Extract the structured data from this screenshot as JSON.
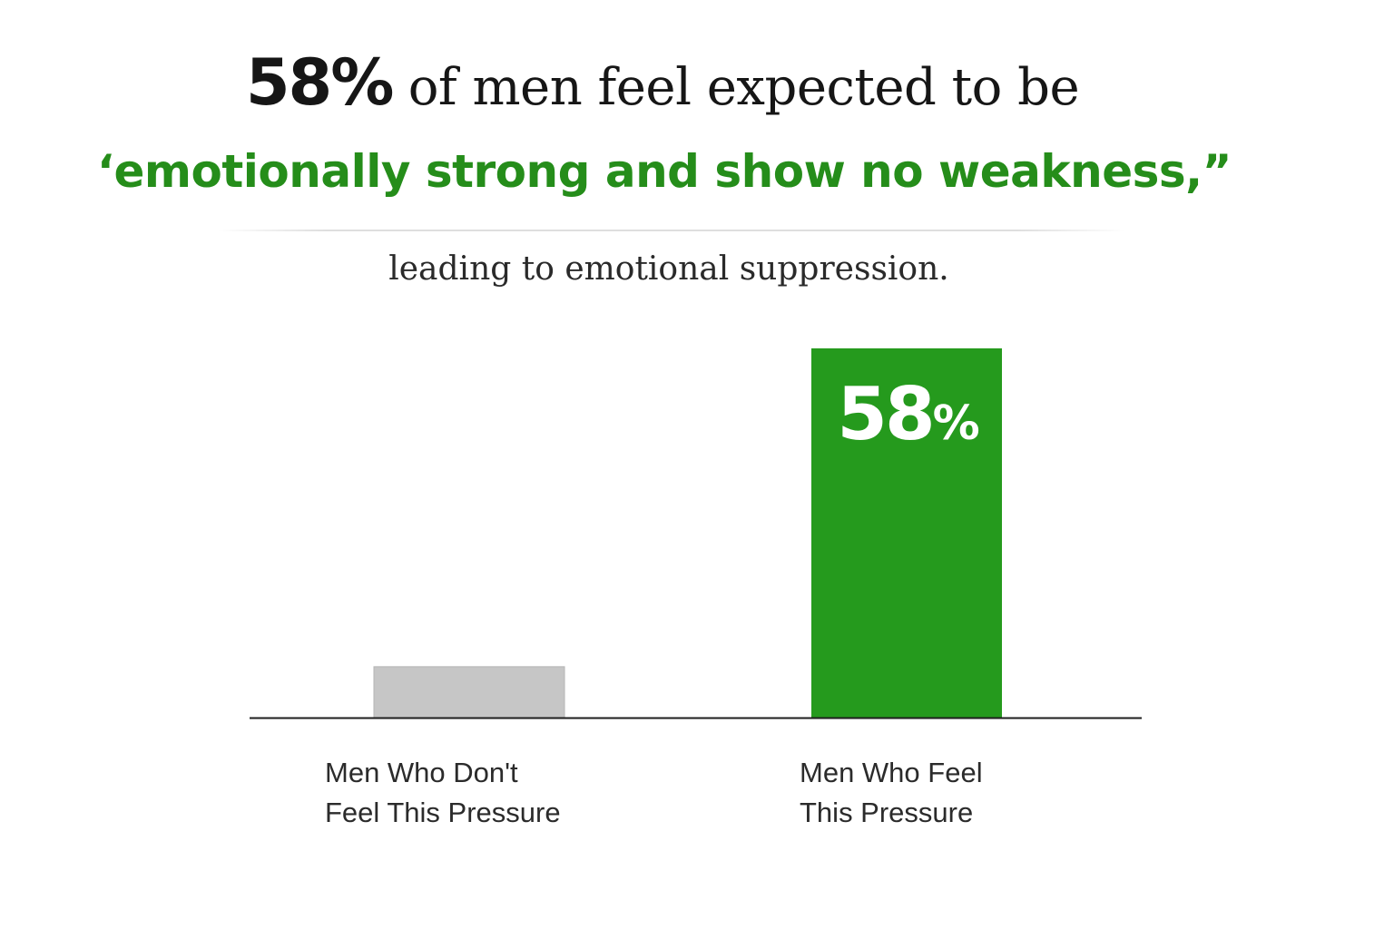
{
  "headline": {
    "value": "58%",
    "text": " of men feel expected to be"
  },
  "subheadline": "‘emotionally strong and show no weakness,”",
  "tagline": "leading to emotional suppression.",
  "colors": {
    "accent": "#258d1a",
    "bar_neutral": "#c6c6c6",
    "text": "#161616"
  },
  "chart_data": {
    "type": "bar",
    "categories": [
      [
        "Men Who Don't",
        "Feel This Pressure"
      ],
      [
        "Men Who Feel",
        "This Pressure"
      ]
    ],
    "values": [
      8,
      58
    ],
    "bar_colors": [
      "#c6c6c6",
      "#259a1d"
    ],
    "data_labels": [
      "",
      "58%"
    ],
    "ylim": [
      0,
      58
    ],
    "grid": false,
    "legend": "none"
  }
}
